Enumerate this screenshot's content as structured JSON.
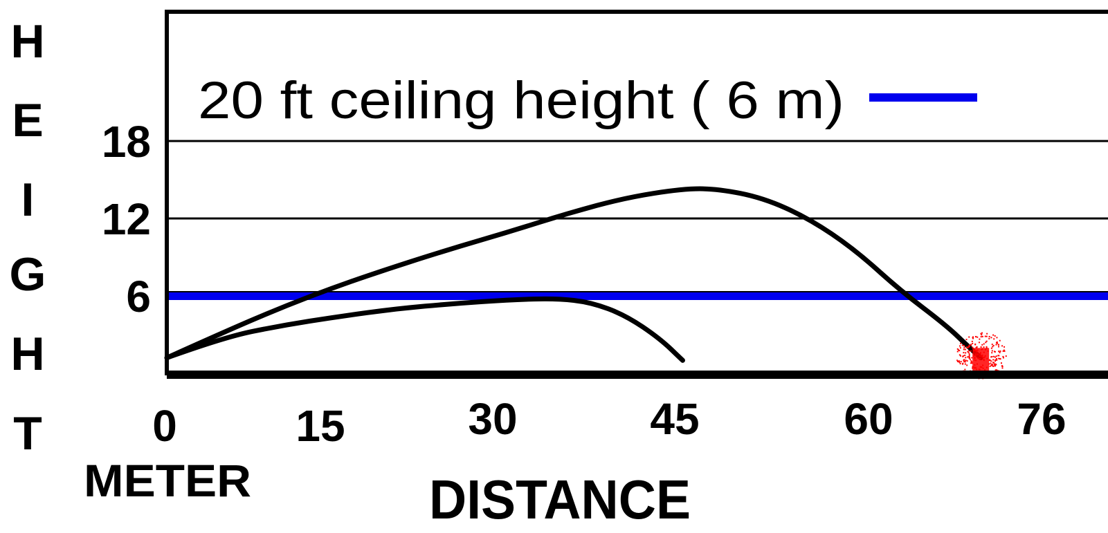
{
  "chart_data": {
    "type": "line",
    "y_title_letters": [
      "H",
      "E",
      "I",
      "G",
      "H",
      "T"
    ],
    "x_unit_label": "METER",
    "xlabel": "DISTANCE",
    "x_ticks": [
      0,
      15,
      30,
      45,
      60,
      76
    ],
    "y_ticks": [
      6,
      12,
      18
    ],
    "xlim": [
      0,
      76
    ],
    "ylim": [
      0,
      18
    ],
    "grid": "horizontal",
    "legend": {
      "text": "20 ft ceiling height  ( 6 m)",
      "color": "#0000ee",
      "placement": "top"
    },
    "ceiling": {
      "y": 6,
      "color": "#0000ee"
    },
    "series": [
      {
        "color": "#000000",
        "points": [
          [
            0,
            1.2
          ],
          [
            5,
            2.8
          ],
          [
            10,
            3.7
          ],
          [
            15,
            4.4
          ],
          [
            20,
            5.0
          ],
          [
            25,
            5.4
          ],
          [
            30,
            5.7
          ],
          [
            34,
            5.8
          ],
          [
            37,
            5.5
          ],
          [
            40,
            4.5
          ],
          [
            43,
            2.7
          ],
          [
            45,
            1.0
          ]
        ]
      },
      {
        "color": "#000000",
        "points": [
          [
            0,
            1.2
          ],
          [
            5,
            3.2
          ],
          [
            10,
            5.1
          ],
          [
            15,
            6.8
          ],
          [
            20,
            8.3
          ],
          [
            25,
            9.7
          ],
          [
            30,
            11.0
          ],
          [
            35,
            12.4
          ],
          [
            40,
            13.6
          ],
          [
            45,
            14.3
          ],
          [
            48,
            14.3
          ],
          [
            52,
            13.6
          ],
          [
            56,
            12.0
          ],
          [
            60,
            9.6
          ],
          [
            64,
            6.4
          ],
          [
            68,
            3.7
          ],
          [
            70,
            2.0
          ],
          [
            71,
            1.2
          ]
        ]
      }
    ],
    "impact_marker": {
      "x": 71,
      "y": 1,
      "color": "#ff0000"
    }
  }
}
